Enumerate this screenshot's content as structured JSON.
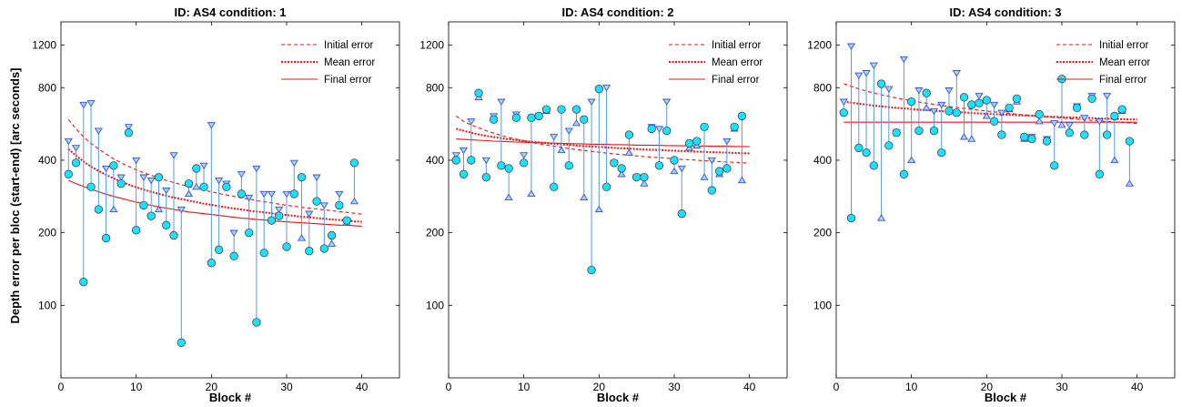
{
  "figure": {
    "ylabel": "Depth error per bloc (start-end) [arc seconds]",
    "xlabel": "Block #"
  },
  "colors": {
    "start_marker_edge": "#3355dd",
    "start_marker_fill": "#aad4f5",
    "line": "#5599dd",
    "circle_fill": "#1de0ff",
    "circle_edge": "#333333",
    "fit": "#ee1111"
  },
  "chart_data": [
    {
      "type": "scatter",
      "title": "ID: AS4 condition: 1",
      "xlim": [
        0,
        45
      ],
      "ylim": [
        50,
        1500
      ],
      "yscale": "log",
      "xticks": [
        0,
        10,
        20,
        30,
        40
      ],
      "yticks": [
        100,
        200,
        400,
        800,
        1200
      ],
      "legend": [
        "Initial error",
        "Mean error",
        "Final error"
      ],
      "legend_position": "top-right",
      "start_error": [
        480,
        450,
        680,
        690,
        530,
        370,
        250,
        340,
        550,
        400,
        340,
        330,
        250,
        300,
        420,
        250,
        290,
        310,
        380,
        560,
        330,
        320,
        200,
        350,
        280,
        370,
        290,
        290,
        250,
        290,
        390,
        190,
        240,
        340,
        260,
        180,
        290,
        220,
        270
      ],
      "end_error": [
        350,
        390,
        125,
        310,
        250,
        190,
        380,
        320,
        520,
        205,
        260,
        235,
        340,
        215,
        195,
        70,
        320,
        370,
        310,
        150,
        170,
        310,
        160,
        290,
        200,
        85,
        165,
        225,
        235,
        175,
        290,
        340,
        168,
        270,
        172,
        195,
        260,
        225,
        390
      ],
      "initial_fit": [
        590,
        540,
        500,
        470,
        445,
        425,
        405,
        390,
        377,
        365,
        355,
        346,
        338,
        330,
        323,
        317,
        311,
        306,
        301,
        296,
        291,
        287,
        283,
        279,
        276,
        272,
        269,
        266,
        263,
        260,
        258,
        255,
        253,
        251,
        249,
        247,
        245,
        243,
        241,
        239
      ],
      "mean_fit": [
        445,
        418,
        395,
        376,
        361,
        348,
        336,
        326,
        317,
        309,
        302,
        296,
        290,
        285,
        280,
        276,
        272,
        268,
        264,
        261,
        258,
        255,
        252,
        250,
        247,
        245,
        243,
        241,
        239,
        237,
        235,
        233,
        232,
        230,
        229,
        227,
        226,
        225,
        223,
        222
      ],
      "final_fit": [
        330,
        320,
        311,
        303,
        296,
        289,
        283,
        278,
        273,
        268,
        264,
        260,
        256,
        253,
        250,
        247,
        244,
        242,
        240,
        238,
        236,
        234,
        232,
        230,
        229,
        227,
        226,
        224,
        223,
        222,
        221,
        220,
        219,
        218,
        217,
        216,
        215,
        215,
        214,
        213
      ]
    },
    {
      "type": "scatter",
      "title": "ID: AS4 condition: 2",
      "xlim": [
        0,
        45
      ],
      "ylim": [
        50,
        1500
      ],
      "yscale": "log",
      "xticks": [
        0,
        10,
        20,
        30,
        40
      ],
      "yticks": [
        100,
        200,
        400,
        800,
        1200
      ],
      "legend": [
        "Initial error",
        "Mean error",
        "Final error"
      ],
      "legend_position": "top-right",
      "start_error": [
        420,
        440,
        580,
        730,
        400,
        610,
        700,
        280,
        620,
        420,
        290,
        610,
        640,
        500,
        440,
        530,
        570,
        280,
        700,
        250,
        800,
        390,
        350,
        430,
        340,
        320,
        550,
        540,
        700,
        360,
        370,
        450,
        460,
        340,
        400,
        350,
        480,
        540,
        330
      ],
      "end_error": [
        400,
        350,
        400,
        760,
        340,
        590,
        380,
        370,
        600,
        390,
        600,
        610,
        650,
        310,
        650,
        380,
        650,
        590,
        140,
        790,
        310,
        390,
        370,
        510,
        340,
        340,
        540,
        380,
        530,
        400,
        240,
        470,
        480,
        550,
        300,
        360,
        370,
        550,
        610
      ],
      "initial_fit": [
        610,
        580,
        560,
        545,
        530,
        518,
        507,
        497,
        489,
        481,
        474,
        468,
        462,
        457,
        452,
        447,
        443,
        439,
        435,
        432,
        428,
        425,
        422,
        420,
        417,
        414,
        412,
        410,
        408,
        405,
        403,
        402,
        400,
        398,
        396,
        395,
        393,
        392,
        390,
        389
      ],
      "mean_fit": [
        540,
        530,
        520,
        512,
        505,
        499,
        494,
        489,
        485,
        481,
        477,
        474,
        471,
        468,
        465,
        463,
        460,
        458,
        456,
        454,
        452,
        450,
        448,
        447,
        445,
        443,
        442,
        441,
        439,
        438,
        437,
        436,
        434,
        433,
        432,
        431,
        430,
        429,
        428,
        427
      ],
      "final_fit": [
        490,
        488,
        486,
        484,
        482,
        480,
        479,
        477,
        476,
        475,
        474,
        473,
        472,
        471,
        470,
        469,
        468,
        467,
        466,
        466,
        465,
        464,
        464,
        463,
        462,
        462,
        461,
        461,
        460,
        460,
        459,
        459,
        458,
        458,
        457,
        457,
        457,
        456,
        456,
        455
      ]
    },
    {
      "type": "scatter",
      "title": "ID: AS4 condition: 3",
      "xlim": [
        0,
        45
      ],
      "ylim": [
        50,
        1500
      ],
      "yscale": "log",
      "xticks": [
        0,
        10,
        20,
        30,
        40
      ],
      "yticks": [
        100,
        200,
        400,
        800,
        1200
      ],
      "legend": [
        "Initial error",
        "Mean error",
        "Final error"
      ],
      "legend_position": "top-right",
      "start_error": [
        700,
        1190,
        900,
        920,
        990,
        230,
        790,
        520,
        1050,
        400,
        780,
        660,
        640,
        680,
        780,
        920,
        500,
        490,
        740,
        610,
        680,
        630,
        650,
        700,
        490,
        500,
        580,
        490,
        570,
        560,
        560,
        670,
        600,
        740,
        580,
        740,
        400,
        640,
        320
      ],
      "end_error": [
        630,
        230,
        450,
        430,
        380,
        830,
        460,
        520,
        350,
        700,
        530,
        760,
        530,
        430,
        640,
        630,
        730,
        680,
        690,
        710,
        580,
        510,
        660,
        720,
        500,
        490,
        620,
        480,
        380,
        870,
        520,
        660,
        510,
        720,
        350,
        510,
        610,
        650,
        480
      ],
      "initial_fit": [
        830,
        810,
        790,
        775,
        760,
        748,
        736,
        725,
        715,
        706,
        697,
        689,
        682,
        675,
        668,
        662,
        656,
        650,
        645,
        640,
        635,
        630,
        626,
        621,
        617,
        613,
        609,
        605,
        602,
        598,
        595,
        592,
        588,
        585,
        582,
        579,
        576,
        574,
        571,
        568
      ],
      "mean_fit": [
        700,
        693,
        686,
        680,
        674,
        669,
        664,
        660,
        656,
        652,
        648,
        645,
        642,
        639,
        636,
        633,
        631,
        628,
        626,
        623,
        621,
        619,
        617,
        615,
        613,
        611,
        609,
        607,
        606,
        604,
        602,
        601,
        599,
        598,
        596,
        595,
        594,
        592,
        591,
        590
      ],
      "final_fit": [
        575,
        575,
        575,
        575,
        575,
        575,
        575,
        575,
        575,
        575,
        575,
        575,
        575,
        575,
        575,
        575,
        575,
        575,
        575,
        575,
        575,
        575,
        575,
        575,
        575,
        575,
        575,
        575,
        575,
        575,
        575,
        575,
        575,
        575,
        575,
        575,
        575,
        575,
        575,
        575
      ]
    }
  ]
}
